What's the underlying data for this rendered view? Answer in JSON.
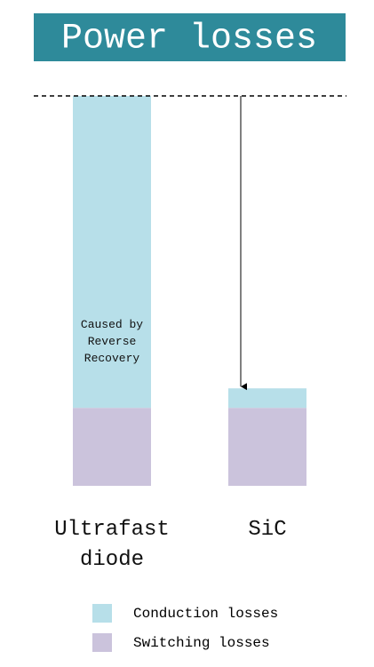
{
  "chart_data": {
    "type": "stacked_bar",
    "title": "Power losses",
    "categories": [
      "Ultrafast diode",
      "SiC"
    ],
    "series": [
      {
        "name": "Conduction losses",
        "color": "#b7dfe9",
        "values": [
          80,
          5
        ]
      },
      {
        "name": "Switching losses",
        "color": "#cbc3dc",
        "values": [
          20,
          20
        ]
      }
    ],
    "ylim": [
      0,
      100
    ],
    "annotation": "Caused by Reverse Recovery"
  }
}
